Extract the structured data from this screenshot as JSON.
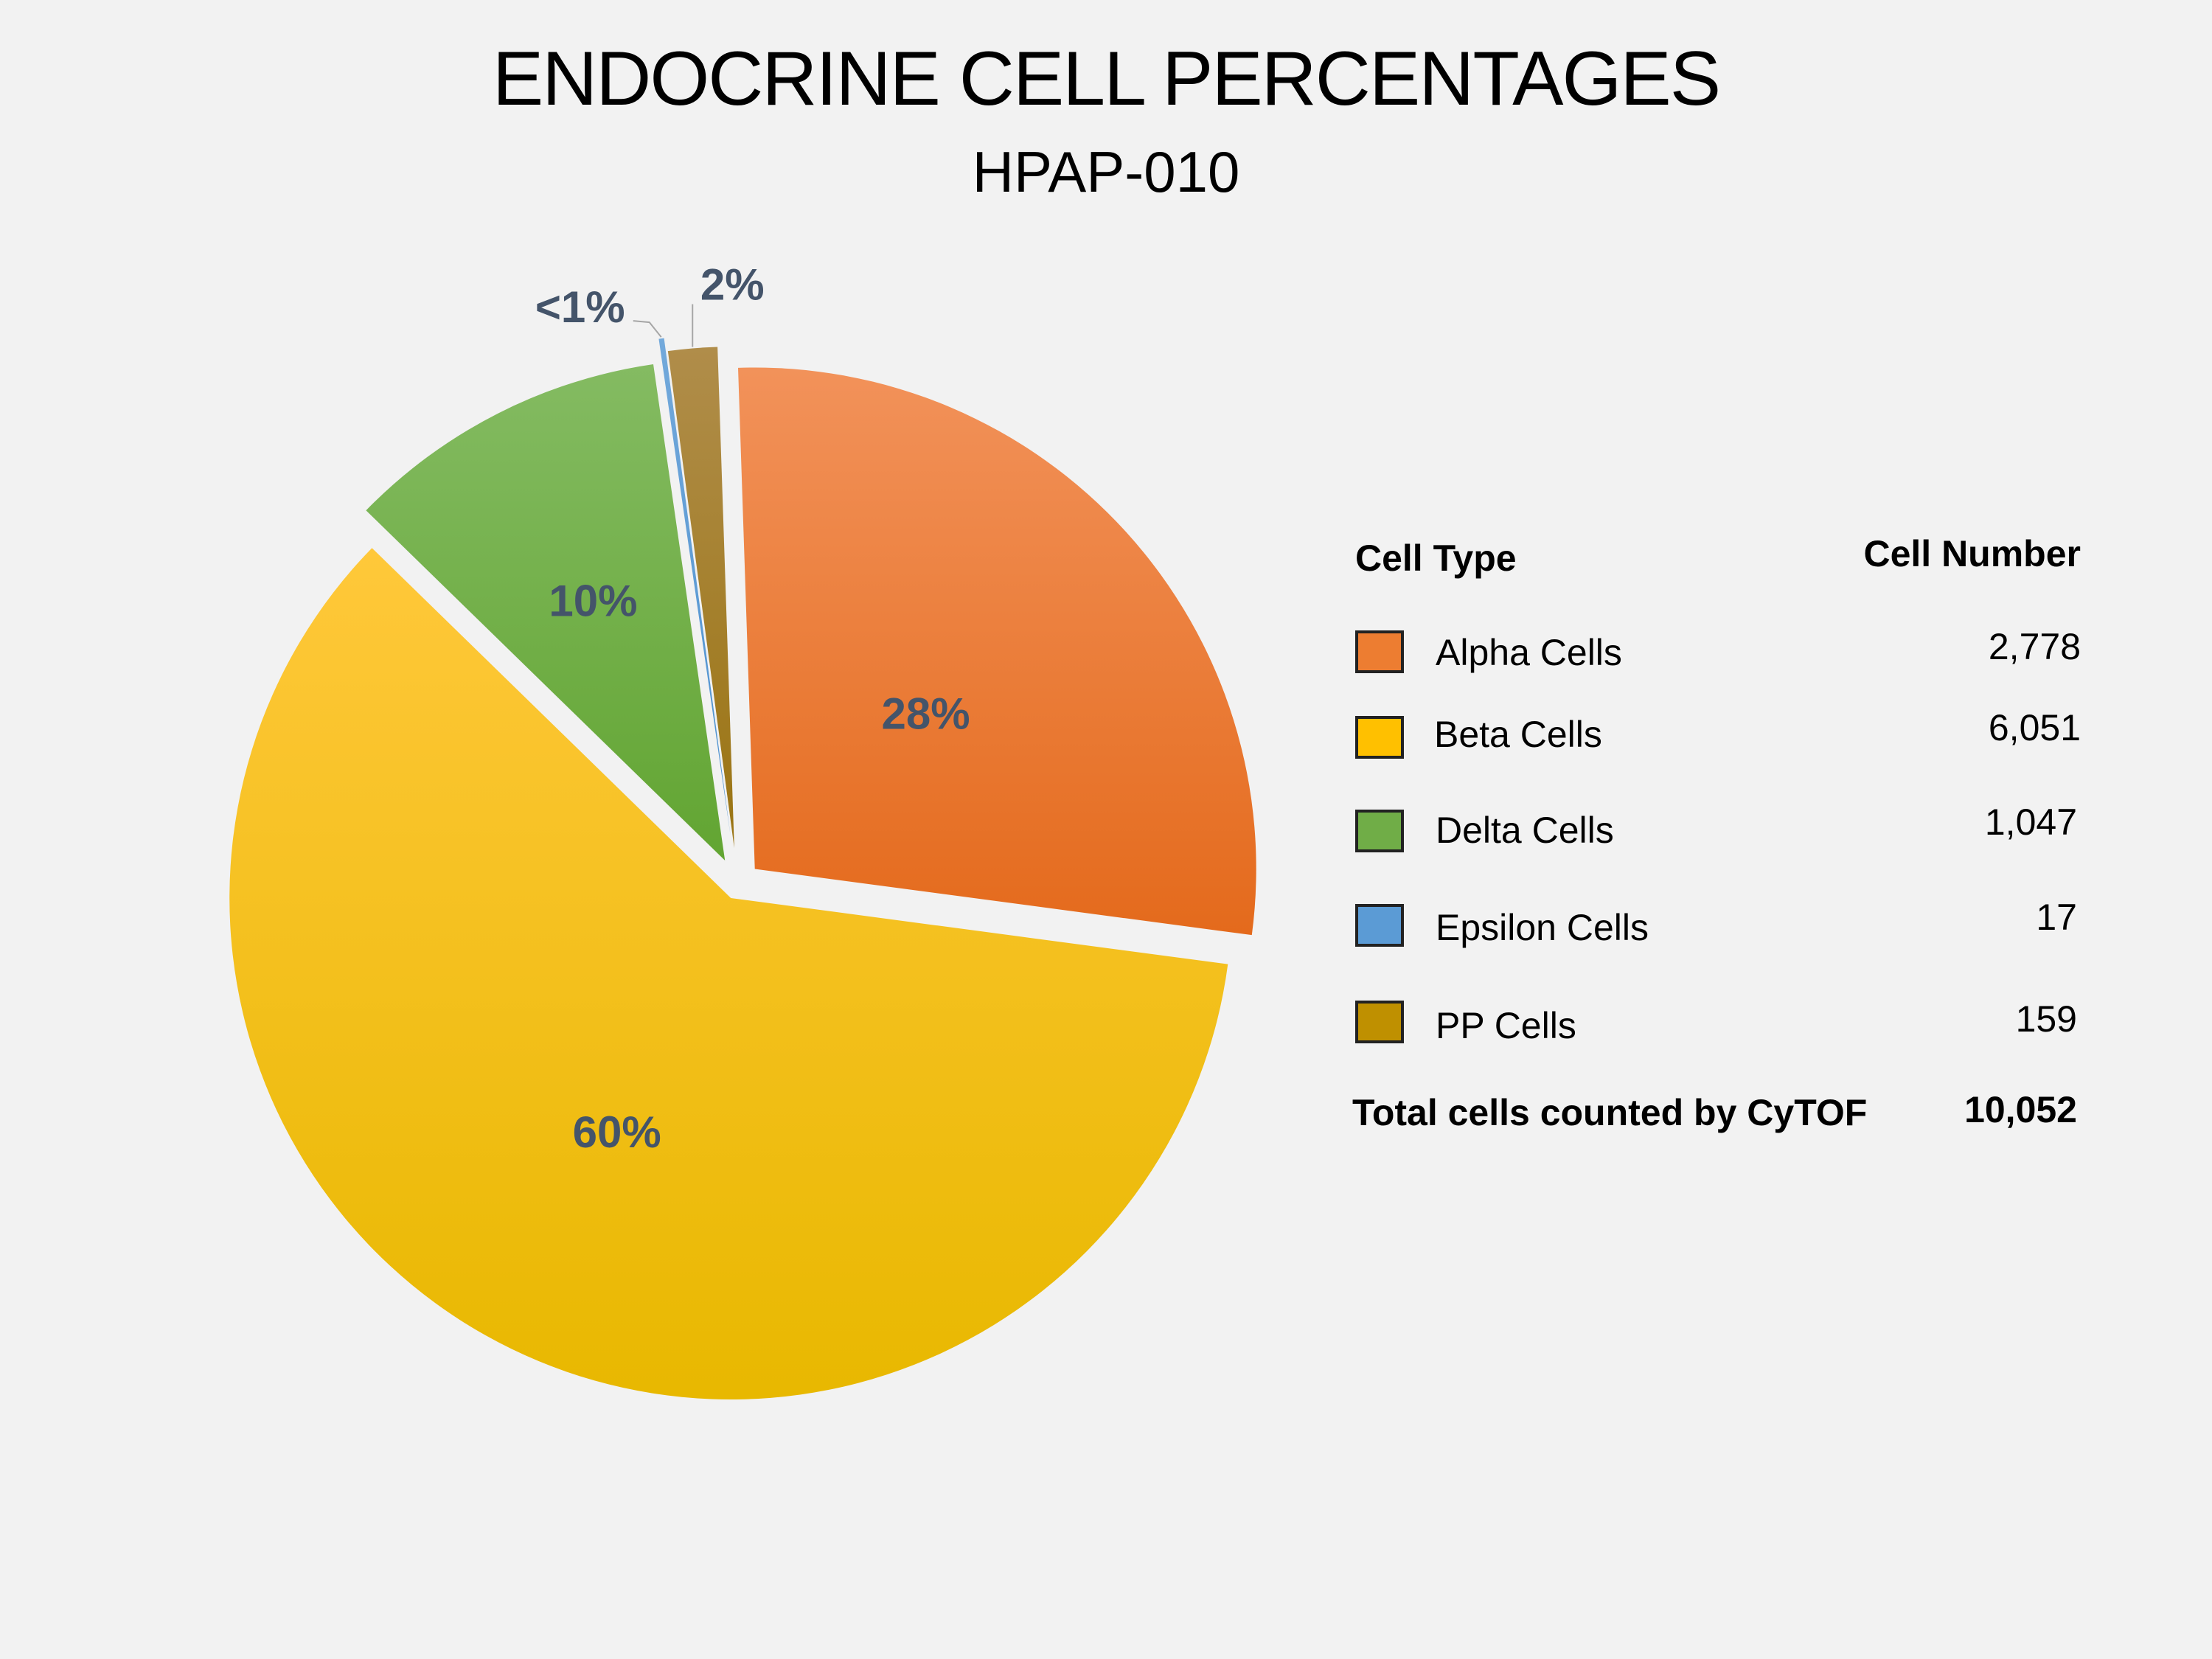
{
  "title": "ENDOCRINE CELL PERCENTAGES",
  "subtitle": "HPAP-010",
  "chart_data": {
    "type": "pie",
    "title": "ENDOCRINE CELL PERCENTAGES",
    "subtitle": "HPAP-010",
    "slices": [
      {
        "name": "Alpha Cells",
        "count": 2778,
        "label": "28%",
        "color": "#ed7d31",
        "color_light": "#f2925a",
        "color_dark": "#e46a1c"
      },
      {
        "name": "Beta Cells",
        "count": 6051,
        "label": "60%",
        "color": "#ffc000",
        "color_light": "#ffc83a",
        "color_dark": "#e8b800"
      },
      {
        "name": "Delta Cells",
        "count": 1047,
        "label": "10%",
        "color": "#70ad47",
        "color_light": "#84bb62",
        "color_dark": "#62a532"
      },
      {
        "name": "Epsilon Cells",
        "count": 17,
        "label": "<1%",
        "color": "#5b9bd5",
        "color_light": "#73a9db",
        "color_dark": "#4a8fcf"
      },
      {
        "name": "PP Cells",
        "count": 159,
        "label": "2%",
        "color": "#a88538",
        "color_light": "#b08d4a",
        "color_dark": "#9a7412"
      }
    ],
    "order": [
      "PP Cells",
      "Alpha Cells",
      "Beta Cells",
      "Delta Cells",
      "Epsilon Cells"
    ],
    "legend_placement": "right"
  },
  "table": {
    "header_type": "Cell Type",
    "header_number": "Cell Number",
    "rows": [
      {
        "label": "Alpha Cells",
        "value": "2,778",
        "color": "#ed7d31"
      },
      {
        "label": "Beta Cells",
        "value": "6,051",
        "color": "#ffc000"
      },
      {
        "label": "Delta Cells",
        "value": "1,047",
        "color": "#70ad47"
      },
      {
        "label": "Epsilon Cells",
        "value": "17",
        "color": "#5b9bd5"
      },
      {
        "label": "PP Cells",
        "value": "159",
        "color": "#bf9000"
      }
    ],
    "total_label": "Total cells counted by CyTOF",
    "total_value": "10,052"
  }
}
